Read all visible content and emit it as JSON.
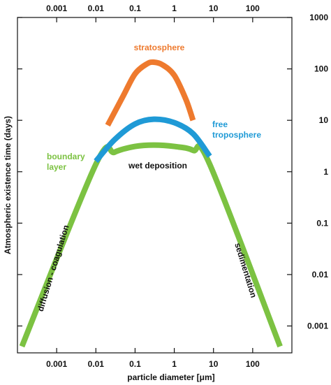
{
  "chart_data": {
    "type": "line",
    "title": "",
    "xlabel": "particle diameter [μm]",
    "ylabel": "Atmospheric existence time (days)",
    "x_scale": "log",
    "y_scale": "log",
    "xlim": [
      0.0001,
      1000
    ],
    "ylim": [
      0.0003,
      1000
    ],
    "x_tick_labels": [
      "0.001",
      "0.01",
      "0.1",
      "1",
      "10",
      "100"
    ],
    "y_tick_labels": [
      "1000",
      "100",
      "10",
      "1",
      "0.1",
      "0.01",
      "0.001"
    ],
    "grid": false,
    "series": [
      {
        "name": "boundary layer",
        "color": "#7cc242",
        "x": [
          0.00013,
          0.01,
          0.03,
          0.1,
          0.3,
          1,
          3,
          8,
          500
        ],
        "y": [
          0.0004,
          1.4,
          2.4,
          3.1,
          3.3,
          3.1,
          2.6,
          1.4,
          0.0004
        ]
      },
      {
        "name": "free troposphere",
        "color": "#1f9ad6",
        "x": [
          0.01,
          0.03,
          0.1,
          0.3,
          1,
          3,
          8
        ],
        "y": [
          1.6,
          4.2,
          8.5,
          10.5,
          9.0,
          5.5,
          2.0
        ]
      },
      {
        "name": "stratosphere",
        "color": "#ee7a2e",
        "x": [
          0.02,
          0.05,
          0.1,
          0.2,
          0.3,
          0.5,
          1,
          2,
          3
        ],
        "y": [
          8,
          30,
          80,
          125,
          135,
          120,
          75,
          25,
          10
        ]
      }
    ],
    "annotations": {
      "stratosphere": "stratosphere",
      "free_line1": "free",
      "free_line2": "troposphere",
      "boundary_line1": "boundary",
      "boundary_line2": "layer",
      "wet_deposition": "wet deposition",
      "diffusion": "diffusion - coagulation",
      "sedimentation": "sedimentation"
    }
  }
}
